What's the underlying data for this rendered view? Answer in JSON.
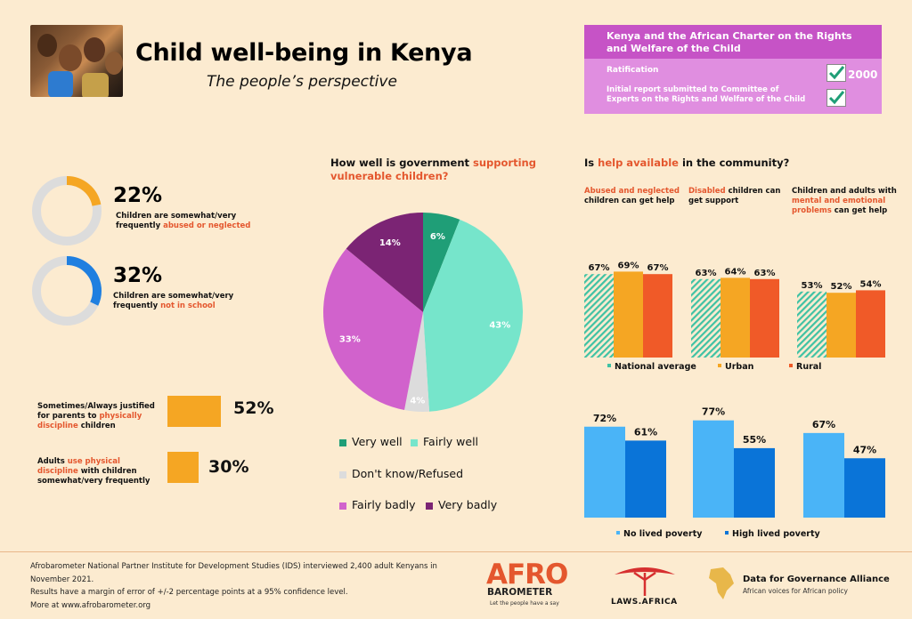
{
  "header": {
    "title": "Child well-being in Kenya",
    "subtitle": "The people’s perspective"
  },
  "charter_box": {
    "title": "Kenya and the African Charter on the Rights and Welfare of the Child",
    "ratification_label": "Ratification",
    "ratification_year": "2000",
    "report_label": "Initial report submitted to Committee of Experts on the Rights and Welfare of the Child"
  },
  "rings": [
    {
      "pct": "22%",
      "value": 22,
      "desc_prefix": "Children are somewhat/very frequently ",
      "desc_highlight": "abused or neglected",
      "color": "#f5a623"
    },
    {
      "pct": "32%",
      "value": 32,
      "desc_prefix": "Children are somewhat/very frequently ",
      "desc_highlight": "not in school",
      "color": "#1f7fe0"
    }
  ],
  "discipline": [
    {
      "desc_a": "Sometimes/Always justified for parents to ",
      "desc_highlight": "physically discipline",
      "desc_b": " children",
      "pct": "52%",
      "value": 52
    },
    {
      "desc_a": "Adults ",
      "desc_highlight": "use physical discipline",
      "desc_b": " with children somewhat/very frequently",
      "pct": "30%",
      "value": 30
    }
  ],
  "pie_question": {
    "prefix": "How well is government ",
    "highlight": "supporting vulnerable children?"
  },
  "help_question": {
    "prefix": "Is ",
    "highlight": "help available",
    "suffix": " in the community?"
  },
  "help_groups": [
    {
      "highlight": "Abused and neglected",
      "rest": " children can get help"
    },
    {
      "highlight": "Disabled",
      "rest": " children can get support"
    },
    {
      "pre": "Children and adults with ",
      "highlight": "mental and emotional problems",
      "rest": " can get help"
    }
  ],
  "chart_data": [
    {
      "type": "pie",
      "title": "How well is government supporting vulnerable children?",
      "categories": [
        "Very well",
        "Fairly well",
        "Don't know/Refused",
        "Fairly badly",
        "Very badly"
      ],
      "values": [
        6,
        43,
        4,
        33,
        14
      ],
      "labels": [
        "6%",
        "43%",
        "4%",
        "33%",
        "14%"
      ],
      "colors": [
        "#1f9e77",
        "#76e5cb",
        "#dcdcdc",
        "#d162cc",
        "#7b2474"
      ],
      "legend": "bottom"
    },
    {
      "type": "bar",
      "title": "Is help available in the community?",
      "categories": [
        "Abused and neglected children can get help",
        "Disabled children can get support",
        "Children and adults with mental and emotional problems can get help"
      ],
      "series": [
        {
          "name": "National average",
          "values": [
            67,
            63,
            53
          ],
          "labels": [
            "67%",
            "63%",
            "53%"
          ],
          "color": "#3fc2a4"
        },
        {
          "name": "Urban",
          "values": [
            69,
            64,
            52
          ],
          "labels": [
            "69%",
            "64%",
            "52%"
          ],
          "color": "#f5a623"
        },
        {
          "name": "Rural",
          "values": [
            67,
            63,
            54
          ],
          "labels": [
            "67%",
            "63%",
            "54%"
          ],
          "color": "#f05a28"
        }
      ],
      "legend": "bottom"
    },
    {
      "type": "bar",
      "categories": [
        "Abused and neglected children can get help",
        "Disabled children can get support",
        "Children and adults with mental and emotional problems can get help"
      ],
      "series": [
        {
          "name": "No lived poverty",
          "values": [
            72,
            77,
            67
          ],
          "labels": [
            "72%",
            "77%",
            "67%"
          ],
          "color": "#4ab4f7"
        },
        {
          "name": "High lived poverty",
          "values": [
            61,
            55,
            47
          ],
          "labels": [
            "61%",
            "55%",
            "47%"
          ],
          "color": "#0a74d8"
        }
      ],
      "legend": "bottom"
    }
  ],
  "footer": {
    "line1": "Afrobarometer National Partner Institute for Development Studies (IDS) interviewed 2,400 adult Kenyans in November 2021.",
    "line2": "Results have a margin of error of +/-2 percentage points at a 95% confidence level.",
    "line3": "More at www.afrobarometer.org"
  },
  "logos": {
    "afro": "AFRO",
    "barometer": "BAROMETER",
    "afro_tagline": "Let the people have a say",
    "laws": "LAWS.AFRICA",
    "dga_title": "Data for Governance Alliance",
    "dga_tagline": "African voices for African policy"
  }
}
